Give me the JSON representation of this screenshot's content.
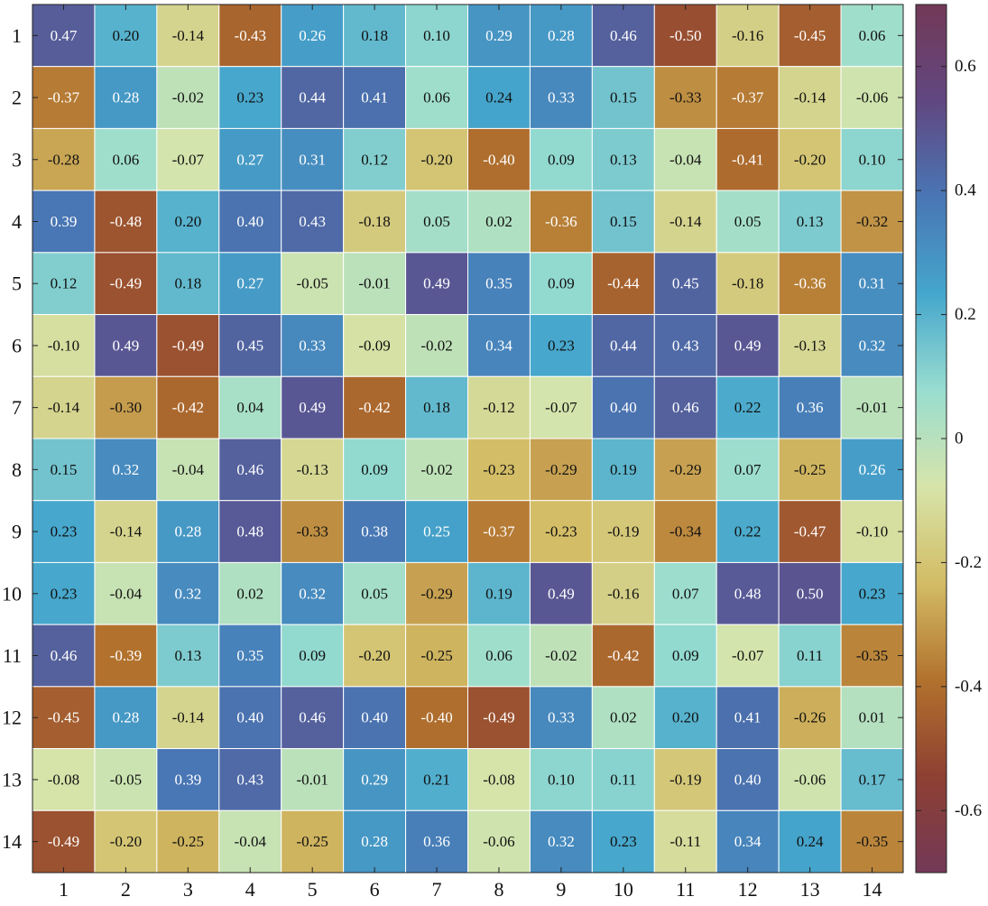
{
  "chart_data": {
    "type": "heatmap",
    "title": "",
    "xlabel": "",
    "ylabel": "",
    "x_categories": [
      "1",
      "2",
      "3",
      "4",
      "5",
      "6",
      "7",
      "8",
      "9",
      "10",
      "11",
      "12",
      "13",
      "14"
    ],
    "y_categories": [
      "1",
      "2",
      "3",
      "4",
      "5",
      "6",
      "7",
      "8",
      "9",
      "10",
      "11",
      "12",
      "13",
      "14"
    ],
    "values": [
      [
        0.47,
        0.2,
        -0.14,
        -0.43,
        0.26,
        0.18,
        0.1,
        0.29,
        0.28,
        0.46,
        -0.5,
        -0.16,
        -0.45,
        0.06
      ],
      [
        -0.37,
        0.28,
        -0.02,
        0.23,
        0.44,
        0.41,
        0.06,
        0.24,
        0.33,
        0.15,
        -0.33,
        -0.37,
        -0.14,
        -0.06
      ],
      [
        -0.28,
        0.06,
        -0.07,
        0.27,
        0.31,
        0.12,
        -0.2,
        -0.4,
        0.09,
        0.13,
        -0.04,
        -0.41,
        -0.2,
        0.1
      ],
      [
        0.39,
        -0.48,
        0.2,
        0.4,
        0.43,
        -0.18,
        0.05,
        0.02,
        -0.36,
        0.15,
        -0.14,
        0.05,
        0.13,
        -0.32
      ],
      [
        0.12,
        -0.49,
        0.18,
        0.27,
        -0.05,
        -0.01,
        0.49,
        0.35,
        0.09,
        -0.44,
        0.45,
        -0.18,
        -0.36,
        0.31
      ],
      [
        -0.1,
        0.49,
        -0.49,
        0.45,
        0.33,
        -0.09,
        -0.02,
        0.34,
        0.23,
        0.44,
        0.43,
        0.49,
        -0.13,
        0.32
      ],
      [
        -0.14,
        -0.3,
        -0.42,
        0.04,
        0.49,
        -0.42,
        0.18,
        -0.12,
        -0.07,
        0.4,
        0.46,
        0.22,
        0.36,
        -0.01
      ],
      [
        0.15,
        0.32,
        -0.04,
        0.46,
        -0.13,
        0.09,
        -0.02,
        -0.23,
        -0.29,
        0.19,
        -0.29,
        0.07,
        -0.25,
        0.26
      ],
      [
        0.23,
        -0.14,
        0.28,
        0.48,
        -0.33,
        0.38,
        0.25,
        -0.37,
        -0.23,
        -0.19,
        -0.34,
        0.22,
        -0.47,
        -0.1
      ],
      [
        0.23,
        -0.04,
        0.32,
        0.02,
        0.32,
        0.05,
        -0.29,
        0.19,
        0.49,
        -0.16,
        0.07,
        0.48,
        0.5,
        0.23
      ],
      [
        0.46,
        -0.39,
        0.13,
        0.35,
        0.09,
        -0.2,
        -0.25,
        0.06,
        -0.02,
        -0.42,
        0.09,
        -0.07,
        0.11,
        -0.35
      ],
      [
        -0.45,
        0.28,
        -0.14,
        0.4,
        0.46,
        0.4,
        -0.4,
        -0.49,
        0.33,
        0.02,
        0.2,
        0.41,
        -0.26,
        0.01
      ],
      [
        -0.08,
        -0.05,
        0.39,
        0.43,
        -0.01,
        0.29,
        0.21,
        -0.08,
        0.1,
        0.11,
        -0.19,
        0.4,
        -0.06,
        0.17
      ],
      [
        -0.49,
        -0.2,
        -0.25,
        -0.04,
        -0.25,
        0.28,
        0.36,
        -0.06,
        0.32,
        0.23,
        -0.11,
        0.34,
        0.24,
        -0.35
      ]
    ],
    "value_range": [
      -0.7,
      0.7
    ],
    "colorbar": {
      "ticks": [
        -0.6,
        -0.4,
        -0.2,
        0,
        0.2,
        0.4,
        0.6
      ],
      "tick_labels": [
        "-0.6",
        "-0.4",
        "-0.2",
        "0",
        "0.2",
        "0.4",
        "0.6"
      ],
      "placement": "right"
    },
    "colormap": [
      "#733957",
      "#8e4032",
      "#b2722d",
      "#d3bc65",
      "#d6e4aa",
      "#99ddd0",
      "#45a6cc",
      "#4976b4",
      "#614781",
      "#733957"
    ],
    "grid": false
  }
}
